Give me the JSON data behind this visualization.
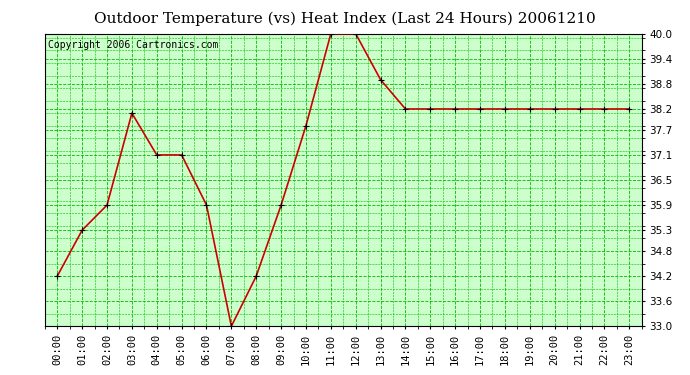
{
  "title": "Outdoor Temperature (vs) Heat Index (Last 24 Hours) 20061210",
  "copyright": "Copyright 2006 Cartronics.com",
  "hours": [
    "00:00",
    "01:00",
    "02:00",
    "03:00",
    "04:00",
    "05:00",
    "06:00",
    "07:00",
    "08:00",
    "09:00",
    "10:00",
    "11:00",
    "12:00",
    "13:00",
    "14:00",
    "15:00",
    "16:00",
    "17:00",
    "18:00",
    "19:00",
    "20:00",
    "21:00",
    "22:00",
    "23:00"
  ],
  "values": [
    34.2,
    35.3,
    35.9,
    38.1,
    37.1,
    37.1,
    35.9,
    33.0,
    34.2,
    35.9,
    37.8,
    40.0,
    40.0,
    38.9,
    38.2,
    38.2,
    38.2,
    38.2,
    38.2,
    38.2,
    38.2,
    38.2,
    38.2,
    38.2
  ],
  "ylim": [
    33.0,
    40.0
  ],
  "yticks": [
    33.0,
    33.6,
    34.2,
    34.8,
    35.3,
    35.9,
    36.5,
    37.1,
    37.7,
    38.2,
    38.8,
    39.4,
    40.0
  ],
  "line_color": "#cc0000",
  "marker_color": "#000000",
  "bg_color": "#ffffff",
  "plot_bg_color": "#ccffcc",
  "grid_color": "#00bb00",
  "title_color": "#000000",
  "border_color": "#000000",
  "title_fontsize": 11,
  "copyright_fontsize": 7,
  "tick_fontsize": 7.5
}
